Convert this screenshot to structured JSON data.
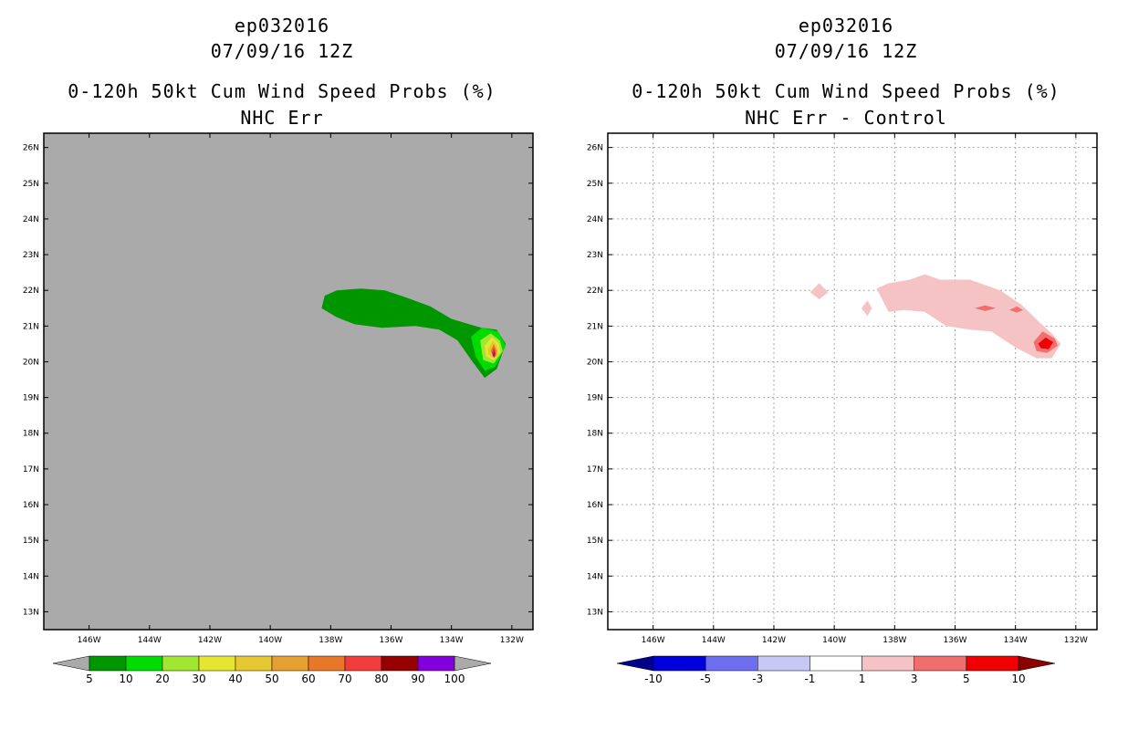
{
  "chart_data": [
    {
      "type": "contour-map",
      "storm_id": "ep032016",
      "date": "07/09/16 12Z",
      "title": "0-120h 50kt Cum Wind Speed Probs (%)",
      "subtitle": "NHC Err",
      "background_color": "#aaaaaa",
      "grid": false,
      "lon_ticks": [
        "146W",
        "144W",
        "142W",
        "140W",
        "138W",
        "136W",
        "134W",
        "132W"
      ],
      "lon_values": [
        146,
        144,
        142,
        140,
        138,
        136,
        134,
        132
      ],
      "lat_ticks": [
        "13N",
        "14N",
        "15N",
        "16N",
        "17N",
        "18N",
        "19N",
        "20N",
        "21N",
        "22N",
        "23N",
        "24N",
        "25N",
        "26N"
      ],
      "lat_values": [
        13,
        14,
        15,
        16,
        17,
        18,
        19,
        20,
        21,
        22,
        23,
        24,
        25,
        26
      ],
      "lon_range": [
        147.5,
        131.3
      ],
      "lat_range": [
        12.5,
        26.4
      ],
      "colorbar": {
        "labels": [
          "5",
          "10",
          "20",
          "30",
          "40",
          "50",
          "60",
          "70",
          "80",
          "90",
          "100"
        ],
        "colors": [
          "#009600",
          "#00dc00",
          "#a0e632",
          "#e6e632",
          "#e6c832",
          "#e6a032",
          "#e67828",
          "#f03c3c",
          "#960000",
          "#8200dc"
        ],
        "end_low": "#aaaaaa",
        "end_high": "#aaaaaa"
      },
      "contours": [
        {
          "level": 5,
          "color": "#009600",
          "points": [
            [
              -138.2,
              21.85
            ],
            [
              -137.8,
              22.0
            ],
            [
              -137.0,
              22.05
            ],
            [
              -136.2,
              22.0
            ],
            [
              -135.5,
              21.8
            ],
            [
              -134.7,
              21.55
            ],
            [
              -134.0,
              21.2
            ],
            [
              -133.0,
              20.95
            ],
            [
              -132.5,
              20.9
            ],
            [
              -132.2,
              20.5
            ],
            [
              -132.5,
              19.8
            ],
            [
              -132.9,
              19.55
            ],
            [
              -133.3,
              20.0
            ],
            [
              -133.8,
              20.6
            ],
            [
              -134.4,
              20.9
            ],
            [
              -135.2,
              21.0
            ],
            [
              -136.3,
              20.95
            ],
            [
              -137.2,
              21.05
            ],
            [
              -137.8,
              21.25
            ],
            [
              -138.3,
              21.5
            ]
          ]
        },
        {
          "level": 10,
          "color": "#00dc00",
          "points": [
            [
              -133.35,
              20.7
            ],
            [
              -133.0,
              20.95
            ],
            [
              -132.45,
              20.85
            ],
            [
              -132.2,
              20.45
            ],
            [
              -132.55,
              19.85
            ],
            [
              -132.9,
              19.75
            ],
            [
              -133.2,
              20.15
            ]
          ]
        },
        {
          "level": 20,
          "color": "#a0e632",
          "points": [
            [
              -133.05,
              20.6
            ],
            [
              -132.7,
              20.8
            ],
            [
              -132.4,
              20.6
            ],
            [
              -132.3,
              20.3
            ],
            [
              -132.6,
              19.95
            ],
            [
              -132.95,
              20.05
            ]
          ]
        },
        {
          "level": 30,
          "color": "#e6e632",
          "points": [
            [
              -132.9,
              20.45
            ],
            [
              -132.65,
              20.7
            ],
            [
              -132.42,
              20.5
            ],
            [
              -132.38,
              20.25
            ],
            [
              -132.6,
              20.05
            ],
            [
              -132.85,
              20.15
            ]
          ]
        },
        {
          "level": 40,
          "color": "#e6c832",
          "points": [
            [
              -132.8,
              20.35
            ],
            [
              -132.62,
              20.6
            ],
            [
              -132.47,
              20.4
            ],
            [
              -132.45,
              20.2
            ],
            [
              -132.62,
              20.1
            ],
            [
              -132.78,
              20.2
            ]
          ]
        },
        {
          "level": 60,
          "color": "#e67828",
          "points": [
            [
              -132.7,
              20.3
            ],
            [
              -132.6,
              20.5
            ],
            [
              -132.5,
              20.3
            ],
            [
              -132.52,
              20.15
            ],
            [
              -132.62,
              20.15
            ]
          ]
        },
        {
          "level": 70,
          "color": "#f03c3c",
          "points": [
            [
              -132.66,
              20.25
            ],
            [
              -132.6,
              20.42
            ],
            [
              -132.54,
              20.25
            ],
            [
              -132.56,
              20.15
            ],
            [
              -132.63,
              20.15
            ]
          ]
        },
        {
          "level": 90,
          "color": "#8200dc",
          "points": [
            [
              -132.62,
              20.2
            ],
            [
              -132.59,
              20.35
            ],
            [
              -132.56,
              20.2
            ],
            [
              -132.59,
              20.1
            ]
          ]
        }
      ]
    },
    {
      "type": "contour-map",
      "storm_id": "ep032016",
      "date": "07/09/16 12Z",
      "title": "0-120h 50kt Cum Wind Speed Probs (%)",
      "subtitle": "NHC Err - Control",
      "background_color": "#ffffff",
      "grid": true,
      "lon_ticks": [
        "146W",
        "144W",
        "142W",
        "140W",
        "138W",
        "136W",
        "134W",
        "132W"
      ],
      "lon_values": [
        146,
        144,
        142,
        140,
        138,
        136,
        134,
        132
      ],
      "lat_ticks": [
        "13N",
        "14N",
        "15N",
        "16N",
        "17N",
        "18N",
        "19N",
        "20N",
        "21N",
        "22N",
        "23N",
        "24N",
        "25N",
        "26N"
      ],
      "lat_values": [
        13,
        14,
        15,
        16,
        17,
        18,
        19,
        20,
        21,
        22,
        23,
        24,
        25,
        26
      ],
      "lon_range": [
        147.5,
        131.3
      ],
      "lat_range": [
        12.5,
        26.4
      ],
      "colorbar": {
        "labels": [
          "-10",
          "-5",
          "-3",
          "-1",
          "1",
          "3",
          "5",
          "10"
        ],
        "colors": [
          "#0000dc",
          "#6e6ef0",
          "#c8c8f5",
          "#ffffff",
          "#f5c3c3",
          "#f06e6e",
          "#f00000"
        ],
        "end_low": "#00008c",
        "end_high": "#8c0000"
      },
      "contours": [
        {
          "level": 1,
          "color": "#f5c3c3",
          "points": [
            [
              -138.6,
              22.05
            ],
            [
              -138.2,
              22.2
            ],
            [
              -137.5,
              22.3
            ],
            [
              -137.0,
              22.45
            ],
            [
              -136.5,
              22.3
            ],
            [
              -135.5,
              22.3
            ],
            [
              -134.5,
              22.0
            ],
            [
              -133.8,
              21.6
            ],
            [
              -133.2,
              21.1
            ],
            [
              -132.8,
              20.8
            ],
            [
              -132.5,
              20.5
            ],
            [
              -132.8,
              20.1
            ],
            [
              -133.3,
              20.1
            ],
            [
              -134.0,
              20.4
            ],
            [
              -134.8,
              20.85
            ],
            [
              -135.5,
              20.9
            ],
            [
              -136.3,
              21.0
            ],
            [
              -137.0,
              21.4
            ],
            [
              -137.7,
              21.45
            ],
            [
              -138.2,
              21.4
            ]
          ]
        },
        {
          "level": 1,
          "color": "#f5c3c3",
          "points": [
            [
              -140.8,
              21.95
            ],
            [
              -140.5,
              22.2
            ],
            [
              -140.2,
              21.95
            ],
            [
              -140.5,
              21.75
            ]
          ]
        },
        {
          "level": 1,
          "color": "#f5c3c3",
          "points": [
            [
              -139.1,
              21.5
            ],
            [
              -138.9,
              21.72
            ],
            [
              -138.75,
              21.5
            ],
            [
              -138.9,
              21.28
            ]
          ]
        },
        {
          "level": 3,
          "color": "#f06e6e",
          "points": [
            [
              -133.4,
              20.55
            ],
            [
              -133.1,
              20.85
            ],
            [
              -132.7,
              20.65
            ],
            [
              -132.6,
              20.45
            ],
            [
              -132.95,
              20.25
            ],
            [
              -133.3,
              20.3
            ]
          ]
        },
        {
          "level": 3,
          "color": "#f06e6e",
          "points": [
            [
              -135.35,
              21.5
            ],
            [
              -135.0,
              21.58
            ],
            [
              -134.65,
              21.5
            ],
            [
              -135.0,
              21.42
            ]
          ]
        },
        {
          "level": 3,
          "color": "#f06e6e",
          "points": [
            [
              -134.2,
              21.45
            ],
            [
              -133.95,
              21.55
            ],
            [
              -133.75,
              21.45
            ],
            [
              -133.95,
              21.38
            ]
          ]
        },
        {
          "level": 5,
          "color": "#f00000",
          "points": [
            [
              -133.25,
              20.5
            ],
            [
              -133.0,
              20.68
            ],
            [
              -132.75,
              20.55
            ],
            [
              -132.9,
              20.35
            ],
            [
              -133.15,
              20.38
            ]
          ]
        }
      ]
    }
  ]
}
